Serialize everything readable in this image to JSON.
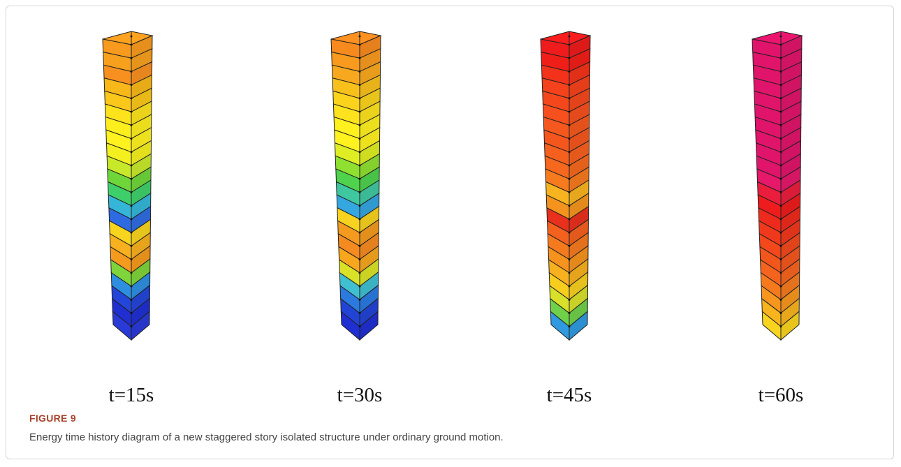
{
  "figure": {
    "panels": [
      "t=15s",
      "t=30s",
      "t=45s",
      "t=60s"
    ],
    "label": "FIGURE 9",
    "caption": "Energy time history diagram of a new staggered story isolated structure under ordinary ground motion."
  }
}
